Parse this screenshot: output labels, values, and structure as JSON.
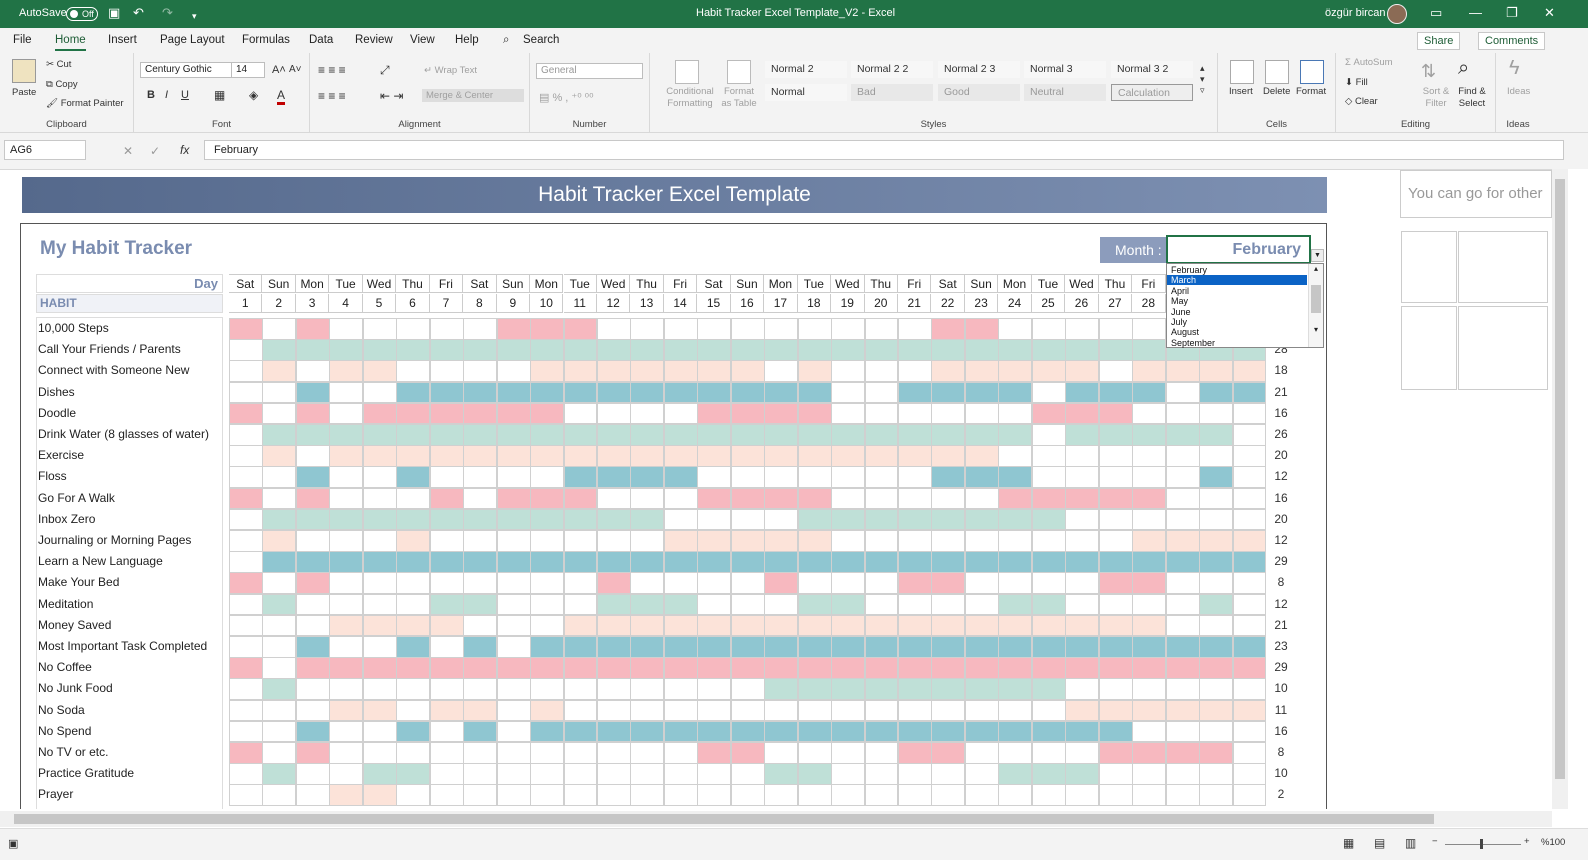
{
  "titlebar": {
    "autosave": "AutoSave",
    "autosave_state": "Off",
    "doc_title": "Habit Tracker Excel Template_V2  -  Excel",
    "user": "özgür bircan"
  },
  "menu": [
    "File",
    "Home",
    "Insert",
    "Page Layout",
    "Formulas",
    "Data",
    "Review",
    "View",
    "Help"
  ],
  "menu_active": "Home",
  "search": "Search",
  "share": "Share",
  "comments": "Comments",
  "ribbon": {
    "clipboard": {
      "paste": "Paste",
      "cut": "Cut",
      "copy": "Copy",
      "format_painter": "Format Painter",
      "label": "Clipboard"
    },
    "font": {
      "name": "Century Gothic",
      "size": "14",
      "label": "Font"
    },
    "alignment": {
      "wrap": "Wrap Text",
      "merge": "Merge & Center",
      "label": "Alignment"
    },
    "number": {
      "format": "General",
      "label": "Number"
    },
    "styles": {
      "cond": "Conditional Formatting",
      "table": "Format as Table",
      "cells": [
        "Normal 2",
        "Normal 2 2",
        "Normal 2 3",
        "Normal 3",
        "Normal 3 2",
        "Normal",
        "Bad",
        "Good",
        "Neutral",
        "Calculation"
      ],
      "label": "Styles"
    },
    "cells": {
      "insert": "Insert",
      "delete": "Delete",
      "format": "Format",
      "label": "Cells"
    },
    "editing": {
      "autosum": "AutoSum",
      "fill": "Fill",
      "clear": "Clear",
      "sort": "Sort & Filter",
      "find": "Find & Select",
      "label": "Editing"
    },
    "ideas": {
      "ideas": "Ideas",
      "label": "Ideas"
    }
  },
  "formula": {
    "cell_ref": "AG6",
    "value": "February"
  },
  "sheet": {
    "banner": "Habit Tracker Excel Template",
    "title": "My Habit Tracker",
    "month_label": "Month :",
    "month_value": "February",
    "side_note": "You can go for other",
    "day_header": "Day",
    "habit_header": "HABIT",
    "weekdays": [
      "Sat",
      "Sun",
      "Mon",
      "Tue",
      "Wed",
      "Thu",
      "Fri",
      "Sat",
      "Sun",
      "Mon",
      "Tue",
      "Wed",
      "Thu",
      "Fri",
      "Sat",
      "Sun",
      "Mon",
      "Tue",
      "Wed",
      "Thu",
      "Fri",
      "Sat",
      "Sun",
      "Mon",
      "Tue",
      "Wed",
      "Thu",
      "Fri"
    ],
    "days": [
      "1",
      "2",
      "3",
      "4",
      "5",
      "6",
      "7",
      "8",
      "9",
      "10",
      "11",
      "12",
      "13",
      "14",
      "15",
      "16",
      "17",
      "18",
      "19",
      "20",
      "21",
      "22",
      "23",
      "24",
      "25",
      "26",
      "27",
      "28"
    ],
    "dropdown_options": [
      "February",
      "March",
      "April",
      "May",
      "June",
      "July",
      "August",
      "September"
    ],
    "dropdown_selected": "March",
    "habits": [
      {
        "name": "10,000 Steps",
        "count": "",
        "color": "#f7b8bf",
        "cells": "1010000011100000000001100000100"
      },
      {
        "name": "Call Your Friends / Parents",
        "count": "28",
        "color": "#bfe0d7",
        "cells": "0111111111111111111111111111111"
      },
      {
        "name": "Connect with Someone New",
        "count": "18",
        "color": "#fce3d9",
        "cells": "0101100001111111010001111101111"
      },
      {
        "name": "Dishes",
        "count": "21",
        "color": "#8fc6d1",
        "cells": "0010011111111111110011110111011"
      },
      {
        "name": "Doodle",
        "count": "16",
        "color": "#f7b8bf",
        "cells": "1010111111000011110000001110000"
      },
      {
        "name": "Drink Water (8 glasses of water)",
        "count": "26",
        "color": "#bfe0d7",
        "cells": "0111111111111111111111110111110"
      },
      {
        "name": "Exercise",
        "count": "20",
        "color": "#fce3d9",
        "cells": "0101111111111111111111100000000"
      },
      {
        "name": "Floss",
        "count": "12",
        "color": "#8fc6d1",
        "cells": "0010010000111100000001110000010"
      },
      {
        "name": "Go For A Walk",
        "count": "16",
        "color": "#f7b8bf",
        "cells": "1010001011100011110000011111000"
      },
      {
        "name": "Inbox Zero",
        "count": "20",
        "color": "#bfe0d7",
        "cells": "0111111111111000011111111000000"
      },
      {
        "name": "Journaling or Morning Pages",
        "count": "12",
        "color": "#fce3d9",
        "cells": "0100010000000111110000000001111"
      },
      {
        "name": "Learn a New Language",
        "count": "29",
        "color": "#8fc6d1",
        "cells": "0111111111111111111111111111111"
      },
      {
        "name": "Make Your Bed",
        "count": "8",
        "color": "#f7b8bf",
        "cells": "1010000000010000100011000011000"
      },
      {
        "name": "Meditation",
        "count": "12",
        "color": "#bfe0d7",
        "cells": "0100001100011100011000011000010"
      },
      {
        "name": "Money Saved",
        "count": "21",
        "color": "#fce3d9",
        "cells": "0001111000111111111111111111000"
      },
      {
        "name": "Most Important Task Completed",
        "count": "23",
        "color": "#8fc6d1",
        "cells": "0010010101111111111111111111111"
      },
      {
        "name": "No Coffee",
        "count": "29",
        "color": "#f7b8bf",
        "cells": "1011111111111111111111111111111"
      },
      {
        "name": "No Junk Food",
        "count": "10",
        "color": "#bfe0d7",
        "cells": "0100000000000000111111111000000"
      },
      {
        "name": "No Soda",
        "count": "11",
        "color": "#fce3d9",
        "cells": "0001101101000000000000000111111"
      },
      {
        "name": "No Spend",
        "count": "16",
        "color": "#8fc6d1",
        "cells": "0010010101111111111111111110000"
      },
      {
        "name": "No TV or etc.",
        "count": "8",
        "color": "#f7b8bf",
        "cells": "1010000000000011000011000011110"
      },
      {
        "name": "Practice Gratitude",
        "count": "10",
        "color": "#bfe0d7",
        "cells": "0100110000000000110000011100000"
      },
      {
        "name": "Prayer",
        "count": "2",
        "color": "#fce3d9",
        "cells": "0001100000000000000000000000000"
      }
    ]
  },
  "status": {
    "zoom": "%100"
  }
}
